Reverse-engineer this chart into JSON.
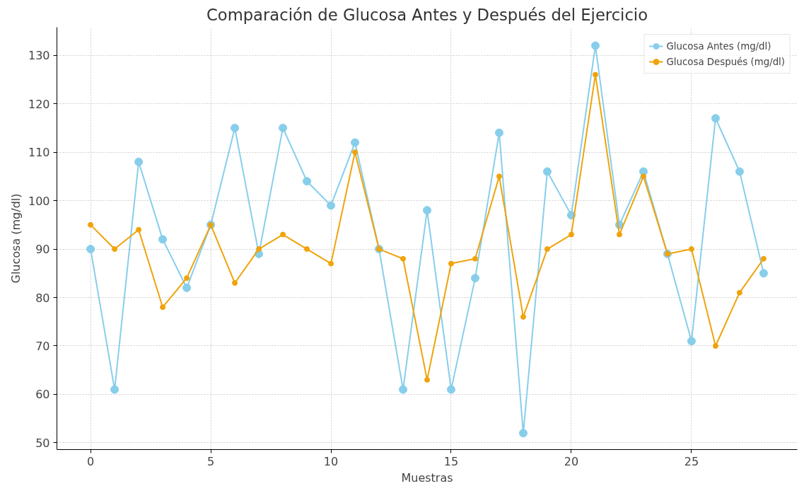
{
  "chart_data": {
    "type": "line",
    "title": "Comparación de Glucosa Antes y Después del Ejercicio",
    "xlabel": "Muestras",
    "ylabel": "Glucosa (mg/dl)",
    "x": [
      0,
      1,
      2,
      3,
      4,
      5,
      6,
      7,
      8,
      9,
      10,
      11,
      12,
      13,
      14,
      15,
      16,
      17,
      18,
      19,
      20,
      21,
      22,
      23,
      24,
      25,
      26,
      27,
      28
    ],
    "series": [
      {
        "name": "Glucosa Antes (mg/dl)",
        "color": "#87ceeb",
        "values": [
          90,
          61,
          108,
          92,
          82,
          95,
          115,
          89,
          115,
          104,
          99,
          112,
          90,
          61,
          98,
          61,
          84,
          114,
          52,
          106,
          97,
          132,
          95,
          106,
          89,
          71,
          117,
          106,
          85
        ]
      },
      {
        "name": "Glucosa Después (mg/dl)",
        "color": "#f0a30a",
        "values": [
          95,
          90,
          94,
          78,
          84,
          95,
          83,
          90,
          93,
          90,
          87,
          110,
          90,
          88,
          63,
          87,
          88,
          105,
          76,
          90,
          93,
          126,
          93,
          105,
          89,
          90,
          70,
          81,
          88
        ]
      }
    ],
    "xlim": [
      -1.4,
      29.4
    ],
    "xticks": [
      0,
      5,
      10,
      15,
      20,
      25
    ],
    "ylim": [
      48.6,
      135.8
    ],
    "yticks": [
      50,
      60,
      70,
      80,
      90,
      100,
      110,
      120,
      130
    ],
    "grid": true,
    "legend": "top right",
    "marker": "circle",
    "line_style": "solid"
  }
}
